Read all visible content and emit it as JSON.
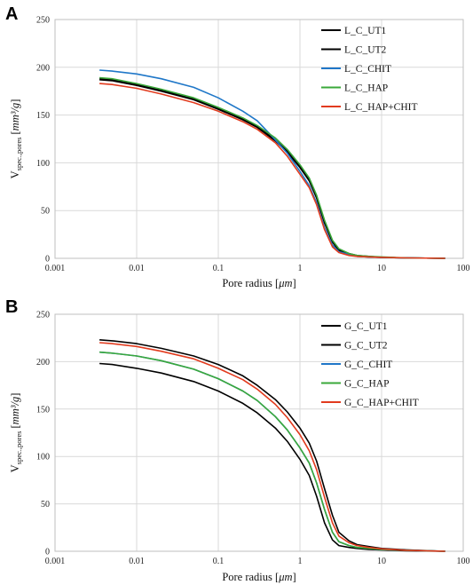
{
  "chart_data": [
    {
      "type": "line",
      "panel_letter": "A",
      "xlabel_main": "Pore radius [",
      "xlabel_unit": "μm",
      "xlabel_close": "]",
      "ylabel_main": "V",
      "ylabel_sub": "spec.,pores",
      "ylabel_unit_open": " [",
      "ylabel_unit": "mm³/g",
      "ylabel_unit_close": "]",
      "x_scale": "log",
      "xlim": [
        0.001,
        100
      ],
      "ylim": [
        0,
        250
      ],
      "x_ticks": [
        "0.001",
        "0.01",
        "0.1",
        "1",
        "10",
        "100"
      ],
      "y_ticks": [
        "0",
        "50",
        "100",
        "150",
        "200",
        "250"
      ],
      "grid": true,
      "legend_position": "top-right",
      "series": [
        {
          "name": "L_C_UT1",
          "color": "#000000",
          "x": [
            0.0035,
            0.005,
            0.01,
            0.02,
            0.05,
            0.1,
            0.2,
            0.3,
            0.5,
            0.7,
            1,
            1.3,
            1.6,
            2,
            2.5,
            3,
            4,
            5,
            7,
            10,
            20,
            60
          ],
          "y": [
            188,
            187,
            182,
            176,
            167,
            157,
            146,
            138,
            124,
            112,
            96,
            82,
            64,
            38,
            18,
            9,
            5,
            3,
            2,
            1,
            0.5,
            0
          ]
        },
        {
          "name": "L_C_UT2",
          "color": "#000000",
          "x": [
            0.0035,
            0.005,
            0.01,
            0.02,
            0.05,
            0.1,
            0.2,
            0.3,
            0.5,
            0.7,
            1,
            1.3,
            1.6,
            2,
            2.5,
            3,
            4,
            5,
            7,
            10,
            20,
            60
          ],
          "y": [
            187,
            186,
            181,
            175,
            166,
            156,
            145,
            137,
            123,
            111,
            95,
            81,
            63,
            37,
            17,
            8,
            4,
            2,
            1.5,
            1,
            0.5,
            0
          ]
        },
        {
          "name": "L_C_CHIT",
          "color": "#1f77c8",
          "x": [
            0.0035,
            0.005,
            0.01,
            0.02,
            0.05,
            0.1,
            0.2,
            0.3,
            0.5,
            0.7,
            1,
            1.3,
            1.6,
            2,
            2.5,
            3,
            4,
            5,
            7,
            10,
            20,
            60
          ],
          "y": [
            197,
            196,
            193,
            188,
            179,
            168,
            154,
            144,
            124,
            110,
            91,
            76,
            58,
            32,
            14,
            7,
            4,
            2.5,
            1.5,
            1,
            0.5,
            0
          ]
        },
        {
          "name": "L_C_HAP",
          "color": "#3aa83a",
          "x": [
            0.0035,
            0.005,
            0.01,
            0.02,
            0.05,
            0.1,
            0.2,
            0.3,
            0.5,
            0.7,
            1,
            1.3,
            1.6,
            2,
            2.5,
            3,
            4,
            5,
            7,
            10,
            20,
            60
          ],
          "y": [
            189,
            188,
            183,
            177,
            168,
            158,
            147,
            139,
            126,
            114,
            98,
            84,
            66,
            40,
            19,
            10,
            5,
            3,
            2,
            1.5,
            0.5,
            0
          ]
        },
        {
          "name": "L_C_HAP+CHIT",
          "color": "#e23b1e",
          "x": [
            0.0035,
            0.005,
            0.01,
            0.02,
            0.05,
            0.1,
            0.2,
            0.3,
            0.5,
            0.7,
            1,
            1.3,
            1.6,
            2,
            2.5,
            3,
            4,
            5,
            7,
            10,
            20,
            60
          ],
          "y": [
            183,
            182,
            178,
            172,
            163,
            154,
            143,
            135,
            121,
            107,
            88,
            74,
            56,
            30,
            12,
            6,
            3,
            2,
            1.5,
            1,
            0.5,
            0
          ]
        }
      ]
    },
    {
      "type": "line",
      "panel_letter": "B",
      "xlabel_main": "Pore radius [",
      "xlabel_unit": "μm",
      "xlabel_close": "]",
      "ylabel_main": "V",
      "ylabel_sub": "spec.,pores",
      "ylabel_unit_open": " [",
      "ylabel_unit": "mm³/g",
      "ylabel_unit_close": "]",
      "x_scale": "log",
      "xlim": [
        0.001,
        100
      ],
      "ylim": [
        0,
        250
      ],
      "x_ticks": [
        "0.001",
        "0.01",
        "0.1",
        "1",
        "10",
        "100"
      ],
      "y_ticks": [
        "0",
        "50",
        "100",
        "150",
        "200",
        "250"
      ],
      "grid": true,
      "legend_position": "top-right",
      "series": [
        {
          "name": "G_C_UT1",
          "color": "#000000",
          "x": [
            0.0035,
            0.005,
            0.01,
            0.02,
            0.05,
            0.1,
            0.2,
            0.3,
            0.5,
            0.7,
            1,
            1.3,
            1.6,
            2,
            2.5,
            3,
            4,
            5,
            7,
            10,
            20,
            60
          ],
          "y": [
            198,
            197,
            193,
            188,
            179,
            169,
            156,
            146,
            130,
            116,
            97,
            80,
            58,
            30,
            12,
            6,
            4,
            3,
            2,
            1.5,
            0.5,
            0
          ]
        },
        {
          "name": "G_C_UT2",
          "color": "#000000",
          "x": [
            0.0035,
            0.005,
            0.01,
            0.02,
            0.05,
            0.1,
            0.2,
            0.3,
            0.5,
            0.7,
            1,
            1.3,
            1.6,
            2,
            2.5,
            3,
            4,
            5,
            7,
            10,
            20,
            60
          ],
          "y": [
            223,
            222,
            219,
            214,
            206,
            197,
            185,
            175,
            160,
            147,
            130,
            114,
            95,
            66,
            38,
            20,
            11,
            7,
            5,
            3,
            1.5,
            0
          ]
        },
        {
          "name": "G_C_CHIT",
          "color": "#1f77c8",
          "x": [
            0.0035,
            0.005,
            0.01,
            0.02,
            0.05,
            0.1,
            0.2,
            0.3,
            0.5,
            0.7,
            1,
            1.3,
            1.6,
            2,
            2.5,
            3,
            4,
            5,
            7,
            10,
            20,
            60
          ],
          "y": [
            210,
            209,
            206,
            201,
            192,
            182,
            169,
            159,
            142,
            128,
            109,
            93,
            72,
            44,
            20,
            10,
            6,
            4,
            3,
            2,
            1,
            0
          ]
        },
        {
          "name": "G_C_HAP",
          "color": "#3aa83a",
          "x": [
            0.0035,
            0.005,
            0.01,
            0.02,
            0.05,
            0.1,
            0.2,
            0.3,
            0.5,
            0.7,
            1,
            1.3,
            1.6,
            2,
            2.5,
            3,
            4,
            5,
            7,
            10,
            20,
            60
          ],
          "y": [
            210,
            209,
            206,
            201,
            192,
            182,
            169,
            159,
            142,
            128,
            109,
            93,
            72,
            44,
            20,
            10,
            6,
            4,
            3,
            2,
            1,
            0
          ]
        },
        {
          "name": "G_C_HAP+CHIT",
          "color": "#e23b1e",
          "x": [
            0.0035,
            0.005,
            0.01,
            0.02,
            0.05,
            0.1,
            0.2,
            0.3,
            0.5,
            0.7,
            1,
            1.3,
            1.6,
            2,
            2.5,
            3,
            4,
            5,
            7,
            10,
            20,
            60
          ],
          "y": [
            220,
            219,
            216,
            211,
            203,
            193,
            181,
            171,
            155,
            141,
            123,
            106,
            86,
            57,
            30,
            16,
            9,
            6,
            4,
            2.5,
            1,
            0
          ]
        }
      ]
    }
  ]
}
